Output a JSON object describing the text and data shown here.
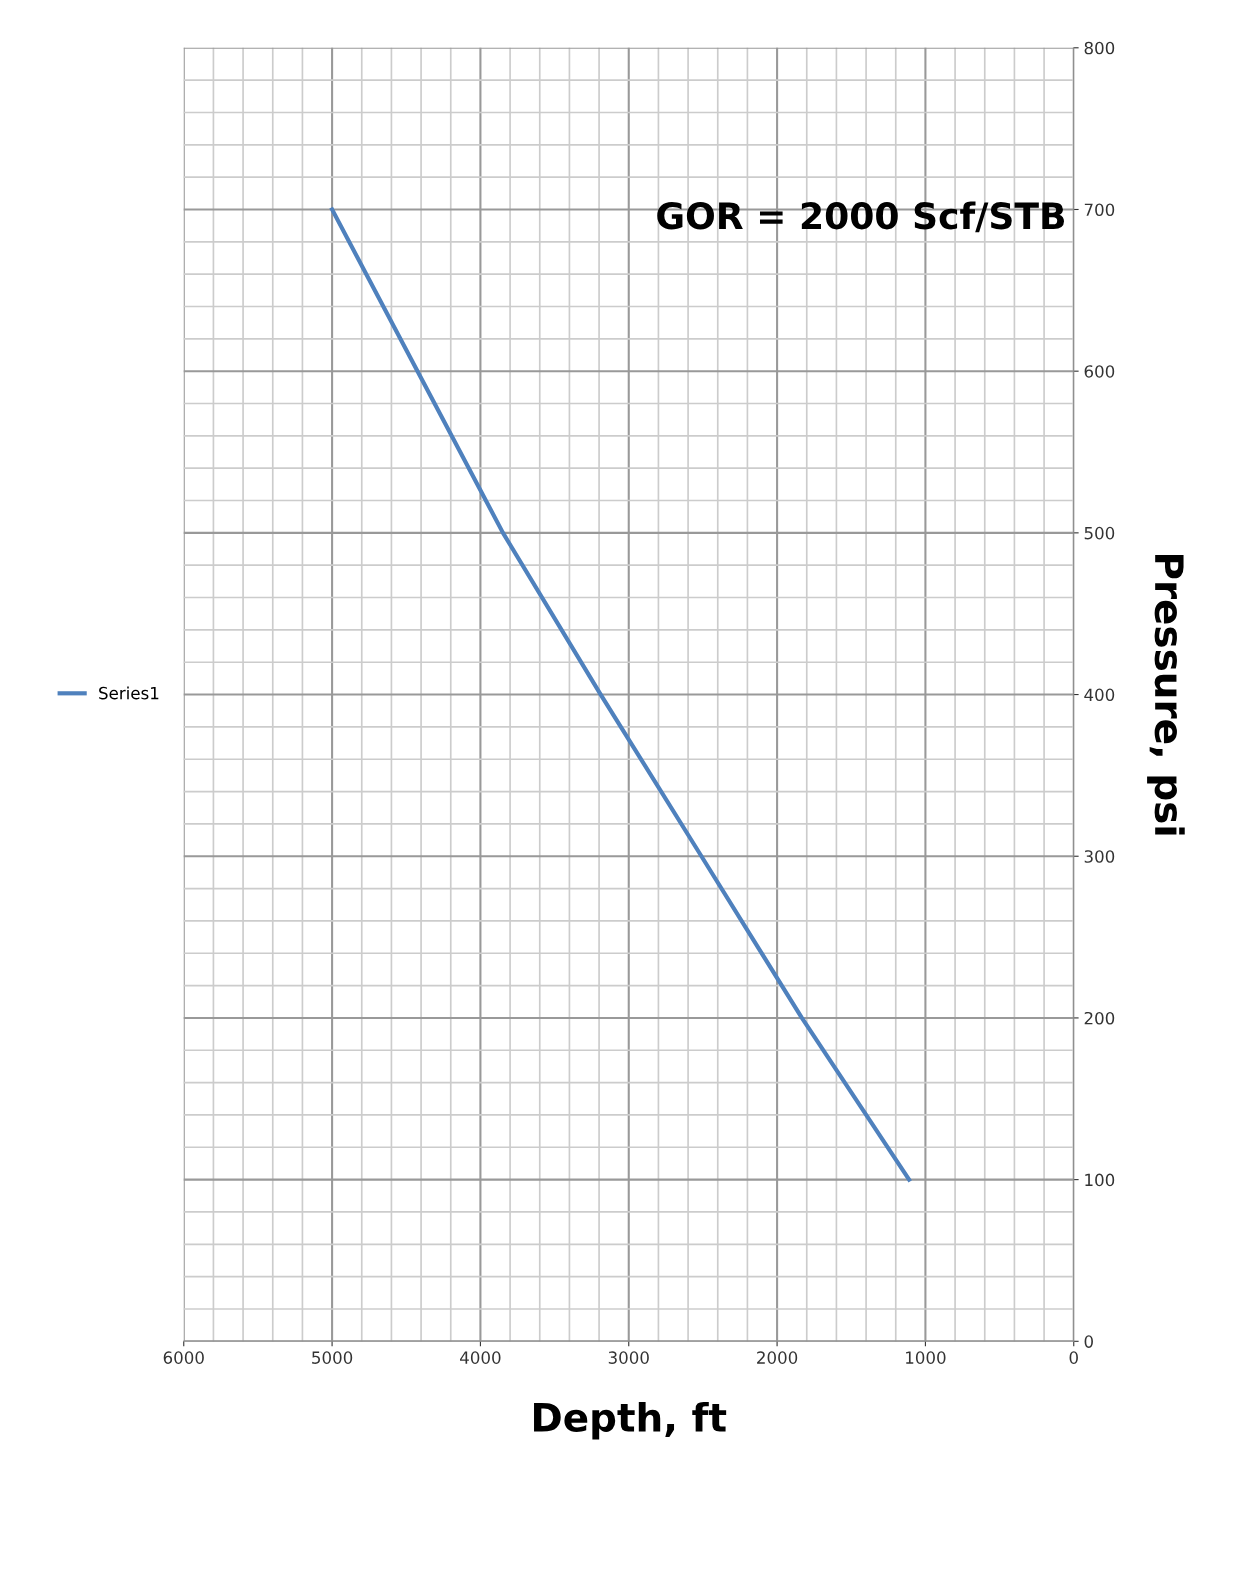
{
  "chart_data": {
    "type": "line",
    "xlabel": "Depth, ft",
    "ylabel": "Pressure, psi",
    "annotations": [
      "GOR = 2000 Scf/STB"
    ],
    "x": [
      5000,
      4424,
      3848,
      3189,
      2510,
      1833,
      1110
    ],
    "series": [
      {
        "name": "Series1",
        "color": "#4f81bd",
        "values": [
          700,
          600,
          500,
          400,
          300,
          200,
          100
        ]
      }
    ],
    "xlim": [
      6000,
      0
    ],
    "xticks": [
      6000,
      5000,
      4000,
      3000,
      2000,
      1000,
      0
    ],
    "ylim": [
      0,
      800
    ],
    "yticks": [
      0,
      100,
      200,
      300,
      400,
      500,
      600,
      700,
      800
    ],
    "grid": true,
    "legend": "left",
    "marker": "none",
    "line_style": "solid"
  }
}
